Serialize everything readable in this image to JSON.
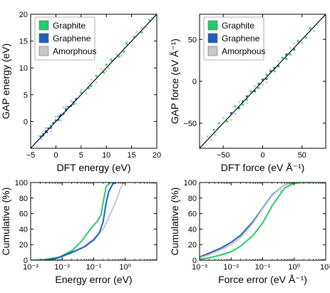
{
  "colors": {
    "graphite": "#22cc66",
    "graphene": "#1f5fbf",
    "amorphous": "#c8c8c8",
    "axis": "#000000",
    "bg": "#ffffff"
  },
  "legend": [
    "Graphite",
    "Graphene",
    "Amorphous"
  ],
  "chart_data": [
    {
      "id": "energy-parity",
      "type": "scatter",
      "xlabel": "DFT energy (eV)",
      "ylabel": "GAP energy (eV)",
      "xlim": [
        -5,
        20
      ],
      "ylim": [
        -5,
        20
      ],
      "xticks": [
        -5,
        0,
        5,
        10,
        15,
        20
      ],
      "yticks": [
        0,
        5,
        10,
        15,
        20
      ],
      "xticklabels": [
        "−5",
        "0",
        "5",
        "10",
        "15",
        "20"
      ],
      "yticklabels": [
        "0",
        "5",
        "10",
        "15",
        "20"
      ],
      "legend_position": "top-left",
      "reference_line": [
        [
          -5,
          -5
        ],
        [
          20,
          20
        ]
      ],
      "series": [
        {
          "name": "Graphite",
          "color_key": "graphite",
          "points": [
            [
              -2.5,
              -2.3
            ],
            [
              -1,
              -0.8
            ],
            [
              0.5,
              0.9
            ],
            [
              2,
              2.4
            ],
            [
              3.5,
              3.2
            ],
            [
              5,
              5.4
            ],
            [
              6.5,
              6.2
            ],
            [
              8,
              8.5
            ],
            [
              9.5,
              9.1
            ],
            [
              11,
              11.4
            ],
            [
              12.5,
              12.1
            ],
            [
              14,
              14.5
            ],
            [
              15.5,
              15.8
            ],
            [
              17,
              16.6
            ],
            [
              18.5,
              18.9
            ],
            [
              13.5,
              13.0
            ],
            [
              10,
              10.6
            ],
            [
              7,
              6.6
            ]
          ]
        },
        {
          "name": "Graphene",
          "color_key": "graphene",
          "points": [
            [
              -3,
              -2.8
            ],
            [
              -2.5,
              -2.6
            ],
            [
              -2,
              -1.8
            ],
            [
              -1.5,
              -1.3
            ],
            [
              -1,
              -1.2
            ],
            [
              -0.5,
              -0.3
            ],
            [
              0,
              0.2
            ],
            [
              0.5,
              0.3
            ],
            [
              1,
              1.2
            ],
            [
              1.5,
              1.4
            ],
            [
              2,
              2.1
            ],
            [
              2.5,
              2.7
            ],
            [
              3,
              2.9
            ],
            [
              3.5,
              3.6
            ],
            [
              4,
              4.2
            ],
            [
              -1.8,
              -2.0
            ],
            [
              0.8,
              1.0
            ]
          ]
        },
        {
          "name": "Amorphous",
          "color_key": "amorphous",
          "points": [
            [
              -3.5,
              -2.7
            ],
            [
              -2,
              -1.2
            ],
            [
              -1,
              -1.8
            ],
            [
              0,
              0.9
            ],
            [
              1,
              0.2
            ],
            [
              2,
              2.9
            ],
            [
              3,
              3.8
            ],
            [
              4,
              3.3
            ],
            [
              5,
              5.9
            ],
            [
              6,
              5.2
            ],
            [
              7,
              7.8
            ],
            [
              8,
              7.3
            ],
            [
              9,
              9.8
            ],
            [
              10,
              9.4
            ],
            [
              11,
              11.7
            ],
            [
              12,
              12.5
            ],
            [
              13,
              12.3
            ],
            [
              14,
              14.8
            ],
            [
              15,
              14.2
            ],
            [
              16,
              16.7
            ],
            [
              17,
              17.4
            ],
            [
              18,
              17.6
            ],
            [
              19,
              19.3
            ],
            [
              19.5,
              19.6
            ],
            [
              1.5,
              2.6
            ],
            [
              -2.8,
              -3.3
            ],
            [
              6.5,
              7.1
            ],
            [
              10.5,
              10.0
            ]
          ]
        }
      ]
    },
    {
      "id": "force-parity",
      "type": "scatter",
      "xlabel": "DFT force (eV Å⁻¹)",
      "ylabel": "GAP force (eV Å⁻¹)",
      "xlim": [
        -80,
        80
      ],
      "ylim": [
        -80,
        80
      ],
      "xticks": [
        -50,
        0,
        50
      ],
      "yticks": [
        -50,
        0,
        50
      ],
      "xticklabels": [
        "−50",
        "0",
        "50"
      ],
      "yticklabels": [
        "−50",
        "0",
        "50"
      ],
      "legend_position": "top-left",
      "reference_line": [
        [
          -80,
          -80
        ],
        [
          80,
          80
        ]
      ],
      "series": [
        {
          "name": "Graphite",
          "color_key": "graphite",
          "points": [
            [
              -55,
              -50
            ],
            [
              -45,
              -48
            ],
            [
              -35,
              -30
            ],
            [
              -25,
              -28
            ],
            [
              -15,
              -12
            ],
            [
              -5,
              -8
            ],
            [
              5,
              8
            ],
            [
              15,
              12
            ],
            [
              25,
              28
            ],
            [
              35,
              32
            ],
            [
              45,
              48
            ],
            [
              55,
              52
            ],
            [
              -62,
              -58
            ],
            [
              60,
              63
            ],
            [
              30,
              27
            ],
            [
              -20,
              -22
            ]
          ]
        },
        {
          "name": "Graphene",
          "color_key": "graphene",
          "points": [
            [
              -40,
              -38
            ],
            [
              -30,
              -32
            ],
            [
              -20,
              -18
            ],
            [
              -10,
              -12
            ],
            [
              -5,
              -3
            ],
            [
              0,
              2
            ],
            [
              5,
              3
            ],
            [
              10,
              12
            ],
            [
              20,
              18
            ],
            [
              30,
              32
            ],
            [
              40,
              38
            ],
            [
              -25,
              -24
            ],
            [
              15,
              16
            ]
          ]
        },
        {
          "name": "Amorphous",
          "color_key": "amorphous",
          "points": [
            [
              -70,
              -66
            ],
            [
              -60,
              -64
            ],
            [
              -50,
              -44
            ],
            [
              -40,
              -46
            ],
            [
              -30,
              -25
            ],
            [
              -20,
              -26
            ],
            [
              -10,
              -6
            ],
            [
              0,
              -4
            ],
            [
              10,
              14
            ],
            [
              20,
              24
            ],
            [
              30,
              26
            ],
            [
              40,
              45
            ],
            [
              50,
              46
            ],
            [
              60,
              64
            ],
            [
              70,
              67
            ],
            [
              -65,
              -70
            ],
            [
              65,
              60
            ],
            [
              -35,
              -39
            ],
            [
              35,
              40
            ],
            [
              5,
              -1
            ]
          ]
        }
      ]
    },
    {
      "id": "energy-cdf",
      "type": "line",
      "xlabel": "Energy error (eV)",
      "ylabel": "Cumulative (%)",
      "xscale": "log",
      "xlim": [
        0.001,
        10
      ],
      "ylim": [
        0,
        100
      ],
      "xticks": [
        0.001,
        0.01,
        0.1,
        1
      ],
      "yticks": [
        0,
        20,
        40,
        60,
        80,
        100
      ],
      "xticklabels": [
        "10⁻³",
        "10⁻²",
        "10⁻¹",
        "10⁰"
      ],
      "yticklabels": [
        "0",
        "20",
        "40",
        "60",
        "80",
        "100"
      ],
      "series": [
        {
          "name": "Amorphous",
          "color_key": "amorphous",
          "x": [
            0.002,
            0.005,
            0.01,
            0.02,
            0.05,
            0.1,
            0.2,
            0.3,
            0.5,
            0.7,
            0.9
          ],
          "y": [
            0,
            2,
            5,
            9,
            18,
            28,
            40,
            55,
            75,
            92,
            100
          ]
        },
        {
          "name": "Graphite",
          "color_key": "graphite",
          "x": [
            0.001,
            0.003,
            0.008,
            0.02,
            0.04,
            0.07,
            0.1,
            0.13,
            0.17,
            0.2,
            0.25,
            0.35
          ],
          "y": [
            0,
            1,
            4,
            12,
            24,
            37,
            45,
            50,
            58,
            75,
            95,
            100
          ]
        },
        {
          "name": "Graphene",
          "color_key": "graphene",
          "x": [
            0.003,
            0.006,
            0.01,
            0.02,
            0.05,
            0.1,
            0.15,
            0.2,
            0.25,
            0.3,
            0.4,
            0.5
          ],
          "y": [
            0,
            2,
            5,
            10,
            17,
            26,
            35,
            50,
            75,
            88,
            98,
            100
          ]
        }
      ]
    },
    {
      "id": "force-cdf",
      "type": "line",
      "xlabel": "Force error (eV Å⁻¹)",
      "ylabel": "Cumulative (%)",
      "xscale": "log",
      "xlim": [
        0.001,
        10
      ],
      "ylim": [
        0,
        100
      ],
      "xticks": [
        0.001,
        0.01,
        0.1,
        1,
        10
      ],
      "yticks": [
        0,
        20,
        40,
        60,
        80,
        100
      ],
      "xticklabels": [
        "10⁻³",
        "10⁻²",
        "10⁻¹",
        "10⁰",
        "10¹"
      ],
      "yticklabels": [
        "0",
        "20",
        "40",
        "60",
        "80",
        "100"
      ],
      "series": [
        {
          "name": "Graphene",
          "color_key": "graphene",
          "x": [
            0.001,
            0.002,
            0.005,
            0.01,
            0.02,
            0.05,
            0.1,
            0.2,
            0.5,
            1,
            2,
            10
          ],
          "y": [
            4,
            9,
            16,
            23,
            32,
            50,
            67,
            84,
            97,
            100,
            100,
            100
          ]
        },
        {
          "name": "Amorphous",
          "color_key": "amorphous",
          "x": [
            0.001,
            0.002,
            0.005,
            0.01,
            0.02,
            0.05,
            0.1,
            0.2,
            0.5,
            1,
            2,
            10
          ],
          "y": [
            3,
            7,
            14,
            20,
            29,
            48,
            66,
            83,
            97,
            100,
            100,
            100
          ]
        },
        {
          "name": "Graphite",
          "color_key": "graphite",
          "x": [
            0.001,
            0.002,
            0.005,
            0.01,
            0.02,
            0.05,
            0.1,
            0.2,
            0.5,
            1,
            2,
            10
          ],
          "y": [
            1,
            3,
            7,
            11,
            18,
            32,
            48,
            70,
            93,
            99,
            100,
            100
          ]
        }
      ]
    }
  ]
}
